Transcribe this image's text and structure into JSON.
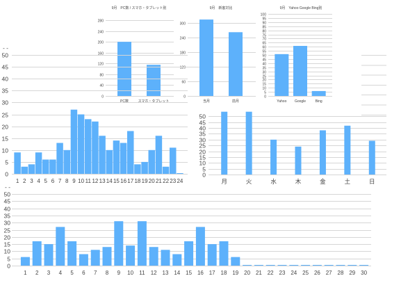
{
  "colors": {
    "bar": "#5db1fb",
    "grid": "#d6d6d6",
    "text": "#444444"
  },
  "chart_data": [
    {
      "id": "device",
      "type": "bar",
      "title": "9月　PC数 / スマホ・タブレット別",
      "categories": [
        "PC数",
        "スマホ・タブレット"
      ],
      "values": [
        200,
        115
      ],
      "ylim": [
        0,
        280
      ],
      "yticks": [
        0,
        40,
        80,
        120,
        160,
        200,
        240,
        280
      ]
    },
    {
      "id": "newret",
      "type": "bar",
      "title": "9月　新客対比",
      "categories": [
        "当月",
        "前月"
      ],
      "values": [
        314,
        262
      ],
      "ylim": [
        0,
        300
      ],
      "yticks": [
        0,
        60,
        120,
        180,
        240,
        300
      ]
    },
    {
      "id": "search",
      "type": "bar",
      "title": "9月　Yahoo Google Bing別",
      "categories": [
        "Yahoo",
        "Google",
        "Bing"
      ],
      "values": [
        51,
        61,
        6
      ],
      "ylim": [
        0,
        100
      ],
      "yticks": [
        0,
        5,
        10,
        15,
        20,
        25,
        30,
        35,
        40,
        45,
        50,
        55,
        60,
        65,
        70,
        75,
        80,
        85,
        90,
        95,
        100
      ]
    },
    {
      "id": "hourly",
      "type": "bar",
      "title": "",
      "categories": [
        "1",
        "2",
        "3",
        "4",
        "5",
        "6",
        "7",
        "8",
        "9",
        "10",
        "11",
        "12",
        "13",
        "14",
        "15",
        "16",
        "17",
        "18",
        "19",
        "20",
        "21",
        "22",
        "23",
        "24"
      ],
      "values": [
        9,
        3,
        4,
        9,
        6,
        6,
        13,
        10,
        27,
        25,
        23,
        22,
        16,
        10,
        14,
        13,
        18,
        4,
        5,
        10,
        16,
        3,
        11,
        0
      ],
      "ylim": [
        0,
        50
      ],
      "yticks": [
        0,
        5,
        10,
        15,
        20,
        25,
        30,
        35,
        40,
        45,
        50
      ]
    },
    {
      "id": "weekday",
      "type": "bar",
      "title": "",
      "categories": [
        "月",
        "火",
        "水",
        "木",
        "金",
        "土",
        "日"
      ],
      "values": [
        54,
        54,
        30,
        24,
        38,
        42,
        29
      ],
      "ylim": [
        0,
        55
      ],
      "yticks": [
        0,
        5,
        10,
        15,
        20,
        25,
        30,
        35,
        40,
        45,
        50
      ]
    },
    {
      "id": "daily",
      "type": "bar",
      "title": "",
      "categories": [
        "1",
        "2",
        "3",
        "4",
        "5",
        "6",
        "7",
        "8",
        "9",
        "10",
        "11",
        "12",
        "13",
        "14",
        "15",
        "16",
        "17",
        "18",
        "19",
        "20",
        "21",
        "22",
        "23",
        "24",
        "25",
        "26",
        "27",
        "28",
        "29",
        "30"
      ],
      "values": [
        6,
        17,
        15,
        27,
        17,
        8,
        11,
        13,
        31,
        14,
        31,
        13,
        11,
        8,
        17,
        27,
        15,
        17,
        6,
        0,
        0,
        0,
        0,
        0,
        0,
        0,
        0,
        0,
        0,
        0
      ],
      "ylim": [
        0,
        50
      ],
      "yticks": [
        0,
        5,
        10,
        15,
        20,
        25,
        30,
        35,
        40,
        45,
        50
      ]
    }
  ]
}
